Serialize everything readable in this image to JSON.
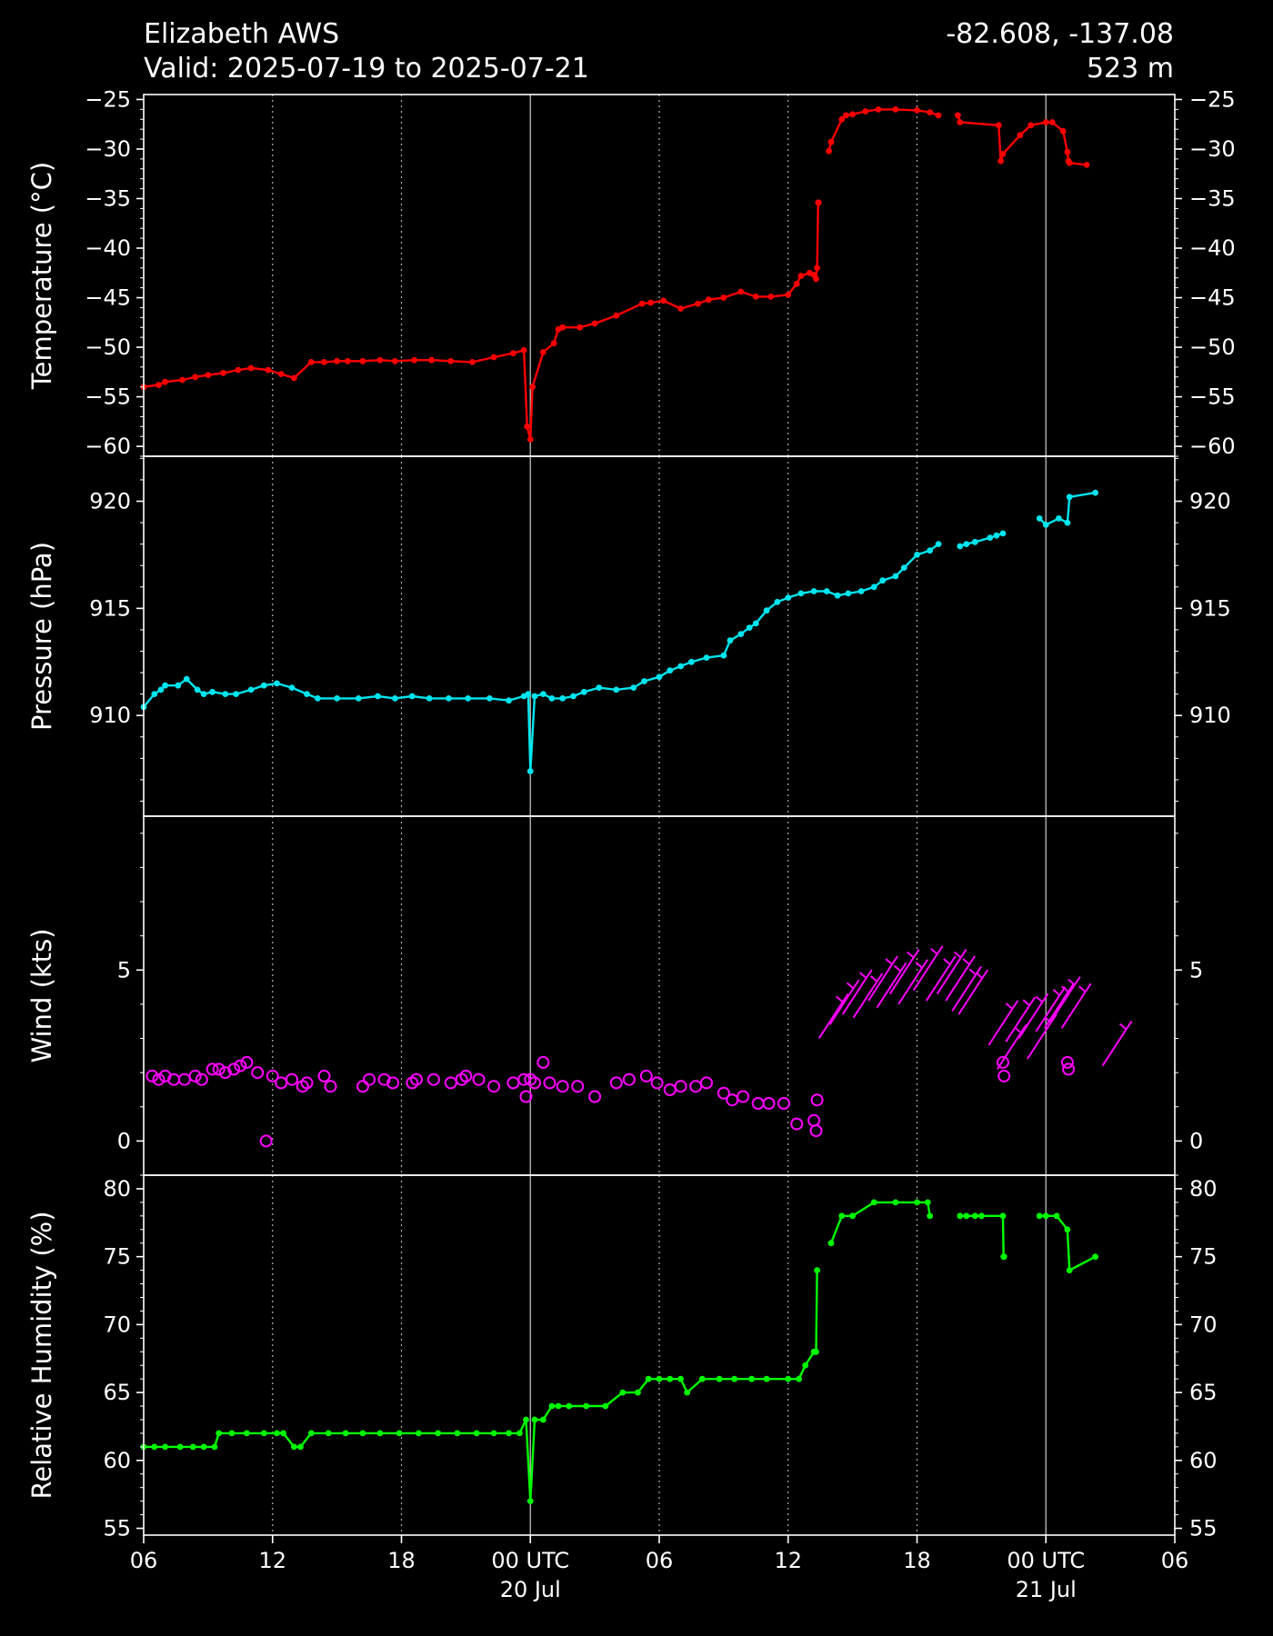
{
  "header": {
    "station": "Elizabeth AWS",
    "valid": "Valid: 2025-07-19 to 2025-07-21",
    "coords": "-82.608, -137.08",
    "elevation": "523 m"
  },
  "colors": {
    "background": "#000000",
    "axes": "#ffffff",
    "temperature": "#ff0000",
    "pressure": "#00e5ee",
    "wind": "#ff00ff",
    "humidity": "#00ff00"
  },
  "x_axis": {
    "ticks": [
      {
        "hour": 0,
        "label": "06",
        "sublabel": "",
        "day_boundary": false
      },
      {
        "hour": 6,
        "label": "12",
        "sublabel": "",
        "day_boundary": false
      },
      {
        "hour": 12,
        "label": "18",
        "sublabel": "",
        "day_boundary": false
      },
      {
        "hour": 18,
        "label": "00 UTC",
        "sublabel": "20 Jul",
        "day_boundary": true
      },
      {
        "hour": 24,
        "label": "06",
        "sublabel": "",
        "day_boundary": false
      },
      {
        "hour": 30,
        "label": "12",
        "sublabel": "",
        "day_boundary": false
      },
      {
        "hour": 36,
        "label": "18",
        "sublabel": "",
        "day_boundary": false
      },
      {
        "hour": 42,
        "label": "00 UTC",
        "sublabel": "21 Jul",
        "day_boundary": true
      },
      {
        "hour": 48,
        "label": "06",
        "sublabel": "",
        "day_boundary": false
      }
    ]
  },
  "chart_data": [
    {
      "type": "line",
      "panel": "temperature",
      "ylabel": "Temperature ($^\\circ$C)",
      "ylim": [
        -61,
        -24.5
      ],
      "yticks": [
        -25,
        -30,
        -35,
        -40,
        -45,
        -50,
        -55,
        -60
      ],
      "xlim_hours_since_2025-07-19T06Z": [
        0,
        48
      ],
      "series": [
        {
          "x": [
            0,
            0.7,
            1.0,
            1.8,
            2.4,
            3.0,
            3.7,
            4.4,
            5.0,
            5.8,
            6.4,
            7.0,
            7.8,
            8.4,
            9.0,
            9.5,
            10.2,
            11.0,
            11.7,
            12.6,
            13.4,
            14.3,
            15.3,
            16.3,
            17.2,
            17.7,
            17.85,
            18.0,
            18.1,
            18.6,
            19.1,
            19.3,
            19.5,
            20.3,
            21.0,
            22.0,
            23.2,
            23.6,
            24.2,
            25.0,
            25.8,
            26.3,
            27.0,
            27.8,
            28.5,
            29.2,
            30.0,
            30.4,
            30.6,
            31.0,
            31.2,
            31.3,
            31.35,
            31.4,
            31.42
          ],
          "y": [
            -54.0,
            -53.8,
            -53.5,
            -53.3,
            -53.0,
            -52.8,
            -52.6,
            -52.3,
            -52.1,
            -52.3,
            -52.7,
            -53.1,
            -51.5,
            -51.5,
            -51.4,
            -51.4,
            -51.4,
            -51.3,
            -51.4,
            -51.3,
            -51.3,
            -51.4,
            -51.5,
            -51.0,
            -50.6,
            -50.3,
            -58.0,
            -59.3,
            -54.0,
            -50.5,
            -49.6,
            -48.2,
            -48.0,
            -48.0,
            -47.6,
            -46.8,
            -45.6,
            -45.5,
            -45.3,
            -46.1,
            -45.6,
            -45.2,
            -45.0,
            -44.4,
            -44.9,
            -44.9,
            -44.7,
            -43.6,
            -42.8,
            -42.5,
            -42.7,
            -43.1,
            -42.0,
            -35.4,
            -35.4
          ],
          "x2": [
            31.9,
            32.0,
            32.5,
            32.7,
            33.0,
            33.6,
            34.2,
            35.0,
            36.0,
            36.6,
            37.0
          ],
          "y2": [
            -30.2,
            -29.3,
            -27.0,
            -26.6,
            -26.5,
            -26.2,
            -26.0,
            -26.0,
            -26.1,
            -26.3,
            -26.6
          ],
          "x3": [
            37.9,
            38.0,
            39.8,
            39.9,
            40.0,
            40.8,
            41.3,
            42.0,
            42.3,
            42.8,
            43.0,
            43.05,
            43.1,
            43.9
          ],
          "y3": [
            -26.6,
            -27.3,
            -27.6,
            -31.2,
            -30.5,
            -28.6,
            -27.6,
            -27.3,
            -27.3,
            -28.2,
            -30.3,
            -31.2,
            -31.4,
            -31.6
          ]
        }
      ]
    },
    {
      "type": "line",
      "panel": "pressure",
      "ylabel": "Pressure (hPa)",
      "ylim": [
        905.3,
        922.1
      ],
      "yticks": [
        910,
        915,
        920
      ],
      "xlim_hours_since_2025-07-19T06Z": [
        0,
        48
      ],
      "series": [
        {
          "x": [
            0,
            0.5,
            0.8,
            1.0,
            1.6,
            2.0,
            2.5,
            2.8,
            3.2,
            3.8,
            4.3,
            5.0,
            5.6,
            6.2,
            6.9,
            7.6,
            8.1,
            9.0,
            10.0,
            10.9,
            11.7,
            12.5,
            13.3,
            14.2,
            15.1,
            16.1,
            17.0,
            17.7,
            17.9,
            18.0,
            18.2,
            18.6,
            19.0,
            19.5,
            20.0,
            20.5,
            21.2,
            22.0,
            22.8,
            23.3,
            24.0,
            24.5,
            25.0,
            25.5,
            26.2,
            27.0,
            27.3,
            27.8,
            28.2,
            28.5,
            29.0,
            29.5,
            30.0,
            30.6,
            31.2,
            31.8,
            32.3,
            32.8,
            33.4,
            34.0,
            34.4,
            35.0,
            35.4,
            36.0,
            36.6,
            37.0
          ],
          "y": [
            910.4,
            911.0,
            911.2,
            911.4,
            911.4,
            911.7,
            911.2,
            911.0,
            911.1,
            911.0,
            911.0,
            911.2,
            911.4,
            911.5,
            911.3,
            911.0,
            910.8,
            910.8,
            910.8,
            910.9,
            910.8,
            910.9,
            910.8,
            910.8,
            910.8,
            910.8,
            910.7,
            910.9,
            911.0,
            907.4,
            910.9,
            911.0,
            910.8,
            910.8,
            910.9,
            911.1,
            911.3,
            911.2,
            911.3,
            911.6,
            911.8,
            912.1,
            912.3,
            912.5,
            912.7,
            912.8,
            913.5,
            913.8,
            914.1,
            914.3,
            914.9,
            915.3,
            915.5,
            915.7,
            915.8,
            915.8,
            915.6,
            915.7,
            915.8,
            916.0,
            916.3,
            916.5,
            916.9,
            917.5,
            917.7,
            918.0
          ]
        },
        {
          "x": [
            38.0,
            38.3,
            38.7,
            39.4,
            39.7,
            40.0
          ],
          "y": [
            917.9,
            918.0,
            918.1,
            918.3,
            918.4,
            918.5
          ]
        },
        {
          "x": [
            41.7,
            42.0,
            42.6,
            43.0,
            43.1,
            44.3
          ],
          "y": [
            919.2,
            918.9,
            919.2,
            919.0,
            920.2,
            920.4
          ]
        }
      ]
    },
    {
      "type": "scatter",
      "panel": "wind",
      "ylabel": "Wind (kts)",
      "ylim": [
        -1.0,
        9.5
      ],
      "yticks": [
        0,
        5
      ],
      "xlim_hours_since_2025-07-19T06Z": [
        0,
        48
      ],
      "calm_points": {
        "x": [
          0.4,
          0.7,
          1.0,
          1.4,
          1.9,
          2.4,
          2.7,
          3.2,
          3.5,
          3.8,
          4.2,
          4.5,
          4.8,
          5.3,
          5.7,
          6.0,
          6.4,
          6.9,
          7.4,
          7.6,
          8.4,
          8.7,
          10.2,
          10.5,
          11.2,
          11.6,
          12.5,
          12.7,
          13.5,
          14.3,
          14.8,
          15.0,
          15.6,
          16.3,
          17.2,
          17.7,
          17.8,
          18.0,
          18.2,
          18.6,
          18.9,
          19.5,
          20.2,
          21.0,
          22.0,
          22.6,
          23.4,
          23.9,
          24.5,
          25.0,
          25.7,
          26.2,
          27.0,
          27.4,
          27.9,
          28.6,
          29.1,
          29.8,
          30.4,
          31.2,
          31.3,
          31.35
        ],
        "y": [
          1.9,
          1.8,
          1.9,
          1.8,
          1.8,
          1.9,
          1.8,
          2.1,
          2.1,
          2.0,
          2.1,
          2.2,
          2.3,
          2.0,
          0.0,
          1.9,
          1.7,
          1.8,
          1.6,
          1.7,
          1.9,
          1.6,
          1.6,
          1.8,
          1.8,
          1.7,
          1.7,
          1.8,
          1.8,
          1.7,
          1.8,
          1.9,
          1.8,
          1.6,
          1.7,
          1.8,
          1.3,
          1.8,
          1.7,
          2.3,
          1.7,
          1.6,
          1.6,
          1.3,
          1.7,
          1.8,
          1.9,
          1.7,
          1.5,
          1.6,
          1.6,
          1.7,
          1.4,
          1.2,
          1.3,
          1.1,
          1.1,
          1.1,
          0.5,
          0.6,
          0.3,
          1.2
        ]
      },
      "barbs": {
        "x": [
          32.2,
          32.7,
          33.3,
          33.8,
          34.5,
          34.9,
          35.5,
          35.9,
          36.6,
          37.2,
          37.7,
          38.1,
          38.4,
          38.7,
          40.1,
          40.5,
          40.9,
          41.5,
          41.9,
          42.3,
          42.7,
          43.0,
          43.5,
          45.4
        ],
        "speed": [
          3.8,
          4.2,
          4.5,
          4.4,
          4.9,
          4.7,
          5.1,
          4.8,
          5.2,
          4.9,
          5.1,
          4.9,
          4.6,
          4.5,
          3.6,
          2.9,
          3.7,
          3.8,
          3.2,
          4.0,
          4.1,
          4.3,
          4.1,
          3.0
        ]
      },
      "calm_late": {
        "x": [
          40.0,
          40.05,
          43.0,
          43.05
        ],
        "y": [
          2.3,
          1.9,
          2.3,
          2.1
        ]
      }
    },
    {
      "type": "line",
      "panel": "humidity",
      "ylabel": "Relative Humidity (%)",
      "ylim": [
        54.5,
        81
      ],
      "yticks": [
        55,
        60,
        65,
        70,
        75,
        80
      ],
      "xlim_hours_since_2025-07-19T06Z": [
        0,
        48
      ],
      "series": [
        {
          "x": [
            0,
            0.5,
            1.0,
            1.7,
            2.3,
            2.8,
            3.3,
            3.5,
            4.1,
            4.8,
            5.6,
            6.2,
            6.5,
            7.0,
            7.3,
            7.8,
            8.6,
            9.4,
            10.2,
            11.0,
            11.9,
            12.8,
            13.7,
            14.6,
            15.5,
            16.3,
            17.0,
            17.5,
            17.8,
            18.0,
            18.2,
            18.6,
            19.0,
            19.3,
            19.8,
            20.6,
            21.5,
            22.3,
            23.0,
            23.5,
            24.0,
            24.5,
            25.0,
            25.3,
            26.0,
            26.8,
            27.5,
            28.3,
            29.0,
            30.0,
            30.5,
            30.8,
            31.2,
            31.25,
            31.3,
            31.35
          ],
          "y": [
            61,
            61,
            61,
            61,
            61,
            61,
            61,
            62,
            62,
            62,
            62,
            62,
            62,
            61,
            61,
            62,
            62,
            62,
            62,
            62,
            62,
            62,
            62,
            62,
            62,
            62,
            62,
            62,
            63,
            57,
            63,
            63,
            64,
            64,
            64,
            64,
            64,
            65,
            65,
            66,
            66,
            66,
            66,
            65,
            66,
            66,
            66,
            66,
            66,
            66,
            66,
            67,
            68,
            68,
            68,
            74
          ]
        },
        {
          "x": [
            32.0,
            32.5,
            33.0,
            34.0,
            35.0,
            36.0,
            36.5,
            36.6
          ],
          "y": [
            76,
            78,
            78,
            79,
            79,
            79,
            79,
            78
          ]
        },
        {
          "x": [
            38.0,
            38.3,
            38.7,
            39.0,
            40.0,
            40.03,
            40.05
          ],
          "y": [
            78,
            78,
            78,
            78,
            78,
            75,
            75
          ]
        },
        {
          "x": [
            41.7,
            42.0,
            42.5,
            43.0,
            43.1,
            44.3
          ],
          "y": [
            78,
            78,
            78,
            77,
            74,
            75
          ]
        }
      ]
    }
  ]
}
